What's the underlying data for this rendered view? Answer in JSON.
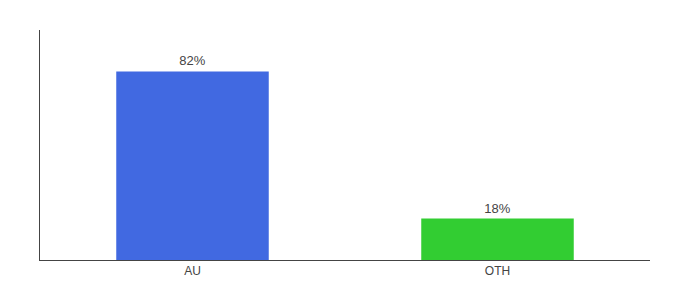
{
  "chart_data": {
    "type": "bar",
    "categories": [
      "AU",
      "OTH"
    ],
    "values": [
      82,
      18
    ],
    "value_labels": [
      "82%",
      "18%"
    ],
    "data_labels": true,
    "colors": [
      "#4169E1",
      "#32CD32"
    ],
    "ylim": [
      0,
      100
    ],
    "grid": false,
    "tick_labels": "x"
  }
}
